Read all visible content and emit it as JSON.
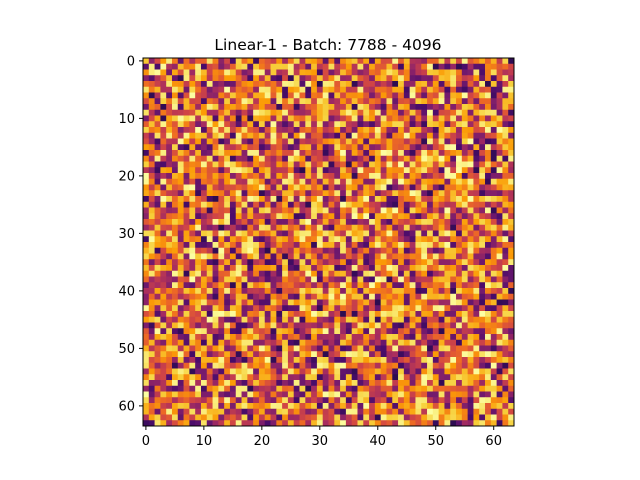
{
  "chart_data": {
    "type": "heatmap",
    "title": "Linear-1 - Batch: 7788 - 4096",
    "xlabel": "",
    "ylabel": "",
    "rows": 64,
    "cols": 64,
    "xlim": [
      -0.5,
      63.5
    ],
    "ylim": [
      63.5,
      -0.5
    ],
    "x_ticks": [
      "0",
      "10",
      "20",
      "30",
      "40",
      "50",
      "60"
    ],
    "y_ticks": [
      "0",
      "10",
      "20",
      "30",
      "40",
      "50",
      "60"
    ],
    "colormap": "inferno",
    "colormap_stops": [
      "#000004",
      "#1b0c41",
      "#4a0c6b",
      "#781c6d",
      "#a52c60",
      "#cf4446",
      "#ed6925",
      "#fb9b06",
      "#f7d13d",
      "#fcffa4"
    ],
    "value_range": [
      0,
      1
    ],
    "grid": false,
    "legend": "none"
  }
}
